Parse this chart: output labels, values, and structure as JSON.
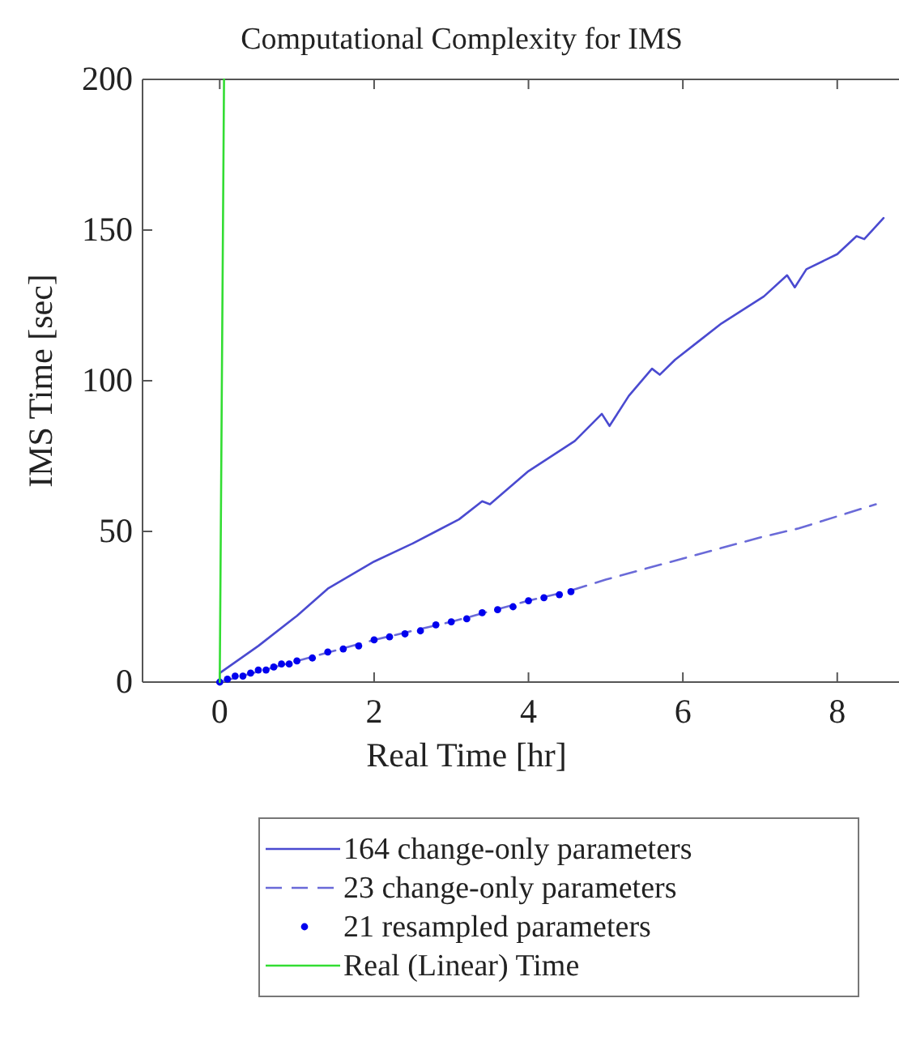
{
  "chart_data": {
    "type": "line",
    "title": "Computational Complexity for IMS",
    "xlabel": "Real Time [hr]",
    "ylabel": "IMS Time [sec]",
    "xlim": [
      -1,
      8.8
    ],
    "xticks": [
      0,
      2,
      4,
      6,
      8
    ],
    "ylim": [
      0,
      200
    ],
    "yticks": [
      0,
      50,
      100,
      150,
      200
    ],
    "grid": false,
    "legend": "bottom",
    "series": [
      {
        "name": "164 change-only parameters",
        "color": "#4a4ad0",
        "line_style": "solid",
        "x": [
          0,
          0.5,
          1,
          1.4,
          2,
          2.5,
          2.8,
          3.1,
          3.4,
          3.5,
          4,
          4.6,
          4.95,
          5.05,
          5.3,
          5.6,
          5.7,
          5.9,
          6.2,
          6.5,
          7.05,
          7.35,
          7.45,
          7.6,
          8,
          8.25,
          8.35,
          8.6
        ],
        "values": [
          3,
          12,
          22,
          31,
          40,
          46,
          50,
          54,
          60,
          59,
          70,
          80,
          89,
          85,
          95,
          104,
          102,
          107,
          113,
          119,
          128,
          135,
          131,
          137,
          142,
          148,
          147,
          154
        ]
      },
      {
        "name": "23 change-only parameters",
        "color": "#6a6ad8",
        "line_style": "dashed",
        "x": [
          0,
          1,
          2,
          3,
          4,
          4.5,
          5,
          6,
          7,
          7.5,
          8,
          8.5
        ],
        "values": [
          0,
          7,
          14,
          20,
          27,
          30,
          34,
          41,
          48,
          51,
          55,
          59
        ]
      },
      {
        "name": "21 resampled parameters",
        "color": "#0000ee",
        "type": "scatter",
        "marker": "circle",
        "x": [
          0,
          0.1,
          0.2,
          0.3,
          0.4,
          0.5,
          0.6,
          0.7,
          0.8,
          0.9,
          1,
          1.2,
          1.4,
          1.6,
          1.8,
          2,
          2.2,
          2.4,
          2.6,
          2.8,
          3,
          3.2,
          3.4,
          3.6,
          3.8,
          4,
          4.2,
          4.4,
          4.55
        ],
        "values": [
          0,
          1,
          2,
          2,
          3,
          4,
          4,
          5,
          6,
          6,
          7,
          8,
          10,
          11,
          12,
          14,
          15,
          16,
          17,
          19,
          20,
          21,
          23,
          24,
          25,
          27,
          28,
          29,
          30
        ]
      },
      {
        "name": "Real (Linear) Time",
        "color": "#33dd33",
        "line_style": "solid",
        "x": [
          0,
          0.0556
        ],
        "values": [
          0,
          200
        ]
      }
    ]
  }
}
